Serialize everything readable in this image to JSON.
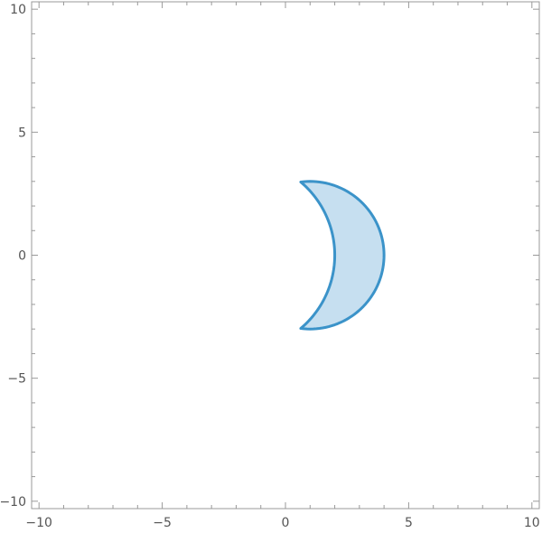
{
  "chart_data": {
    "type": "region",
    "title": "",
    "xlabel": "",
    "ylabel": "",
    "xlim": [
      -10.3,
      10.3
    ],
    "ylim": [
      -10.3,
      10.3
    ],
    "x_ticks": [
      {
        "value": -10,
        "label": "−10"
      },
      {
        "value": -5,
        "label": "−5"
      },
      {
        "value": 0,
        "label": "0"
      },
      {
        "value": 5,
        "label": "5"
      },
      {
        "value": 10,
        "label": "10"
      }
    ],
    "y_ticks": [
      {
        "value": 10,
        "label": "10"
      },
      {
        "value": 5,
        "label": "5"
      },
      {
        "value": 0,
        "label": "0"
      },
      {
        "value": -5,
        "label": "−5"
      },
      {
        "value": -10,
        "label": "−10"
      }
    ],
    "grid": false,
    "region": {
      "shape": "crescent",
      "outer_circle": {
        "cx": 1.0,
        "cy": 0.0,
        "r": 3.0
      },
      "inner_circle": {
        "cx": -1.9,
        "cy": 0.0,
        "r": 3.9
      },
      "fill_color": "#c6dff0",
      "stroke_color": "#3b93c9"
    }
  }
}
